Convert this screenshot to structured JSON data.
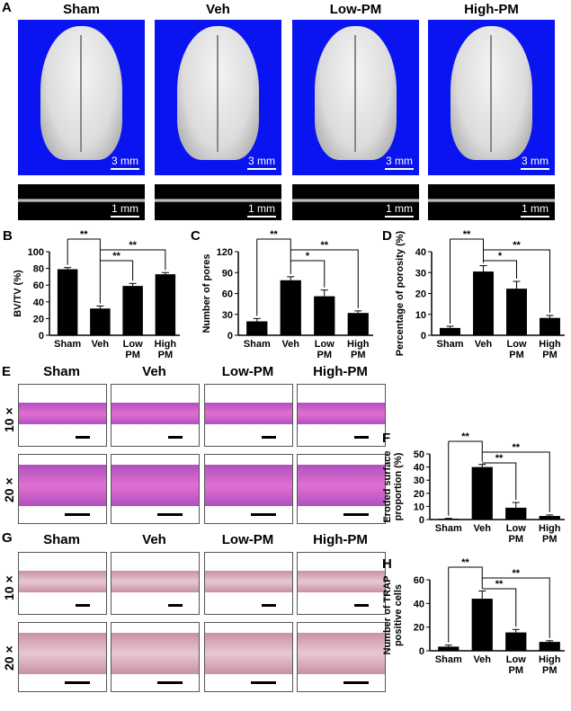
{
  "panel_labels": [
    "A",
    "B",
    "C",
    "D",
    "E",
    "F",
    "G",
    "H"
  ],
  "groups": [
    "Sham",
    "Veh",
    "Low-PM",
    "High-PM"
  ],
  "row_labels": [
    "10 ×",
    "20 ×"
  ],
  "scale_bars": {
    "skull": "3 mm",
    "section": "1 mm"
  },
  "colors": {
    "microct_background": "#0a14f0",
    "he_stain": "#e070d0",
    "trap_stain": "#e8c8d0",
    "bars": "#000000"
  },
  "chart_data": [
    {
      "panel": "B",
      "type": "bar",
      "categories": [
        "Sham",
        "Veh",
        "Low\nPM",
        "High\nPM"
      ],
      "values": [
        79,
        32,
        59,
        73
      ],
      "errors": [
        2,
        3,
        3,
        2
      ],
      "ylabel": "BV/TV (%)",
      "ylim": [
        0,
        100
      ],
      "yticks": [
        0,
        20,
        40,
        60,
        80,
        100
      ],
      "significance": [
        {
          "from": 0,
          "to": 1,
          "label": "**"
        },
        {
          "from": 1,
          "to": 2,
          "label": "**"
        },
        {
          "from": 1,
          "to": 3,
          "label": "**"
        }
      ]
    },
    {
      "panel": "C",
      "type": "bar",
      "categories": [
        "Sham",
        "Veh",
        "Low\nPM",
        "High\nPM"
      ],
      "values": [
        20,
        79,
        56,
        32
      ],
      "errors": [
        4,
        5,
        9,
        3
      ],
      "ylabel": "Number of pores",
      "ylim": [
        0,
        120
      ],
      "yticks": [
        0,
        30,
        60,
        90,
        120
      ],
      "significance": [
        {
          "from": 0,
          "to": 1,
          "label": "**"
        },
        {
          "from": 1,
          "to": 2,
          "label": "*"
        },
        {
          "from": 1,
          "to": 3,
          "label": "**"
        }
      ]
    },
    {
      "panel": "D",
      "type": "bar",
      "categories": [
        "Sham",
        "Veh",
        "Low\nPM",
        "High\nPM"
      ],
      "values": [
        3.5,
        30.5,
        22.3,
        8.3
      ],
      "errors": [
        0.8,
        2.8,
        3.5,
        1.2
      ],
      "ylabel": "Percentage of porosity (%)",
      "ylim": [
        0,
        40
      ],
      "yticks": [
        0,
        10,
        20,
        30,
        40
      ],
      "significance": [
        {
          "from": 0,
          "to": 1,
          "label": "**"
        },
        {
          "from": 1,
          "to": 2,
          "label": "*"
        },
        {
          "from": 1,
          "to": 3,
          "label": "**"
        }
      ]
    },
    {
      "panel": "F",
      "type": "bar",
      "categories": [
        "Sham",
        "Veh",
        "Low\nPM",
        "High\nPM"
      ],
      "values": [
        0.6,
        40,
        9,
        2.7
      ],
      "errors": [
        0.3,
        2,
        4,
        0.8
      ],
      "ylabel": "Eroded surface\nproportion (%)",
      "ylim": [
        0,
        50
      ],
      "yticks": [
        0,
        10,
        20,
        30,
        40,
        50
      ],
      "significance": [
        {
          "from": 0,
          "to": 1,
          "label": "**"
        },
        {
          "from": 1,
          "to": 2,
          "label": "**"
        },
        {
          "from": 1,
          "to": 3,
          "label": "**"
        }
      ]
    },
    {
      "panel": "H",
      "type": "bar",
      "categories": [
        "Sham",
        "Veh",
        "Low\nPM",
        "High\nPM"
      ],
      "values": [
        3.5,
        44,
        15.5,
        7.5
      ],
      "errors": [
        1.3,
        6.5,
        2.5,
        1
      ],
      "ylabel": "Number of TRAP\npositive cells",
      "ylim": [
        0,
        60
      ],
      "yticks": [
        0,
        20,
        40,
        60
      ],
      "significance": [
        {
          "from": 0,
          "to": 1,
          "label": "**"
        },
        {
          "from": 1,
          "to": 2,
          "label": "**"
        },
        {
          "from": 1,
          "to": 3,
          "label": "**"
        }
      ]
    }
  ]
}
